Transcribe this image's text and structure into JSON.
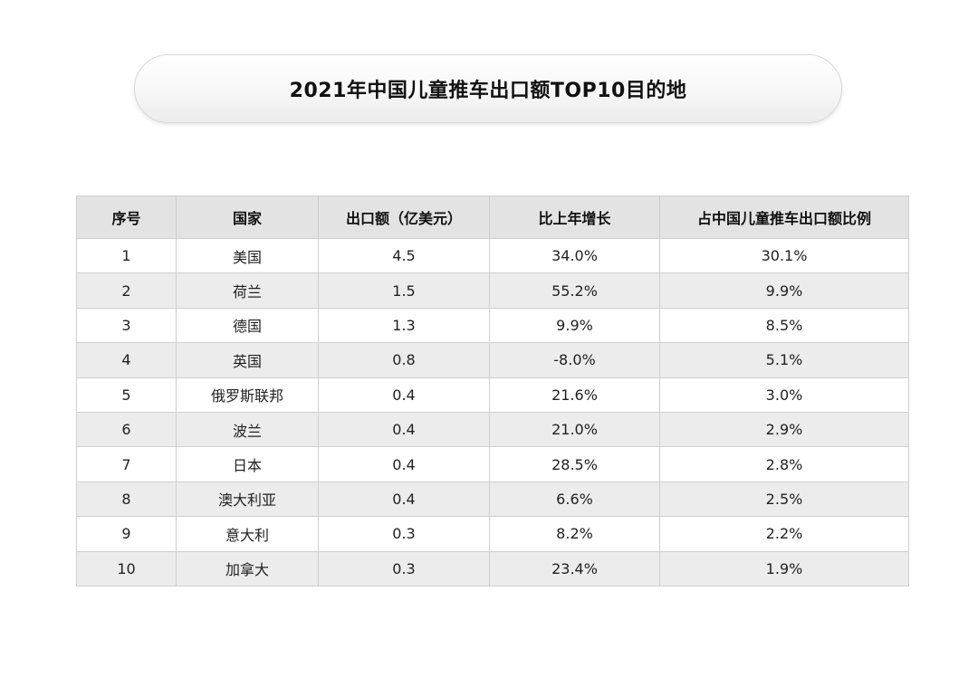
{
  "title": "2021年中国儿童推车出口额TOP10目的地",
  "table": {
    "headers": [
      "序号",
      "国家",
      "出口额（亿美元）",
      "比上年增长",
      "占中国儿童推车出口额比例"
    ],
    "rows": [
      [
        "1",
        "美国",
        "4.5",
        "34.0%",
        "30.1%"
      ],
      [
        "2",
        "荷兰",
        "1.5",
        "55.2%",
        "9.9%"
      ],
      [
        "3",
        "德国",
        "1.3",
        "9.9%",
        "8.5%"
      ],
      [
        "4",
        "英国",
        "0.8",
        "-8.0%",
        "5.1%"
      ],
      [
        "5",
        "俄罗斯联邦",
        "0.4",
        "21.6%",
        "3.0%"
      ],
      [
        "6",
        "波兰",
        "0.4",
        "21.0%",
        "2.9%"
      ],
      [
        "7",
        "日本",
        "0.4",
        "28.5%",
        "2.8%"
      ],
      [
        "8",
        "澳大利亚",
        "0.4",
        "6.6%",
        "2.5%"
      ],
      [
        "9",
        "意大利",
        "0.3",
        "8.2%",
        "2.2%"
      ],
      [
        "10",
        "加拿大",
        "0.3",
        "23.4%",
        "1.9%"
      ]
    ]
  },
  "colors": {
    "header_bg": "#e3e3e3",
    "row_alt_bg": "#ececec",
    "row_bg": "#ffffff",
    "border": "#cfcfcf"
  }
}
